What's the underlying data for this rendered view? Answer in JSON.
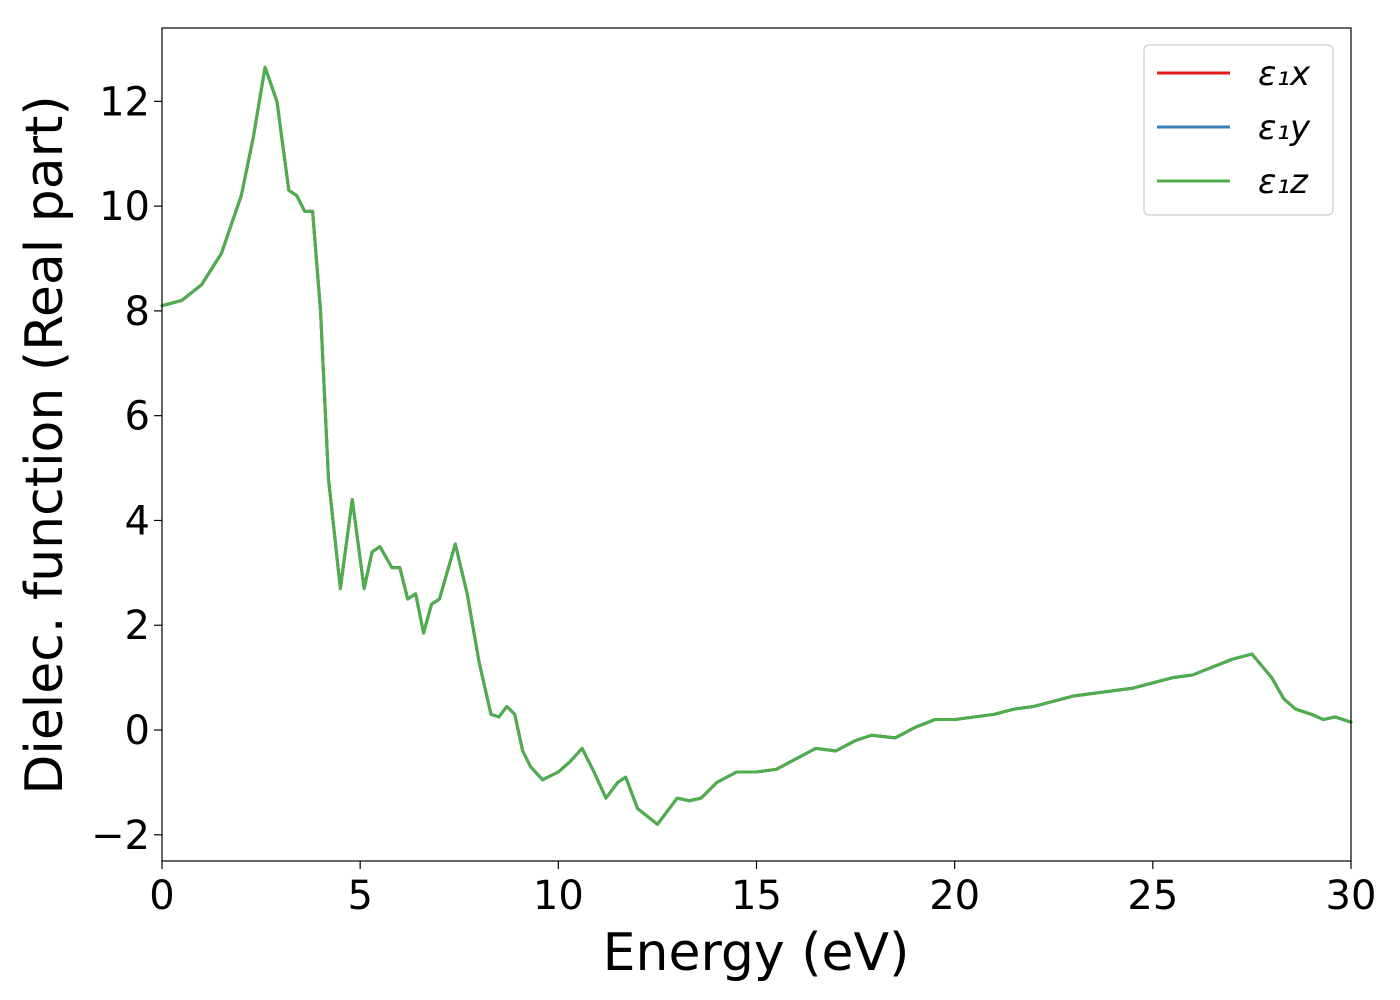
{
  "chart_data": {
    "type": "line",
    "xlabel": "Energy (eV)",
    "ylabel": "Dielec. function (Real part)",
    "xlim": [
      0,
      30
    ],
    "ylim": [
      -2.5,
      13.4
    ],
    "xticks": [
      0,
      5,
      10,
      15,
      20,
      25,
      30
    ],
    "xtick_labels": [
      "0",
      "5",
      "10",
      "15",
      "20",
      "25",
      "30"
    ],
    "yticks": [
      -2,
      0,
      2,
      4,
      6,
      8,
      10,
      12
    ],
    "ytick_labels": [
      "−2",
      "0",
      "2",
      "4",
      "6",
      "8",
      "10",
      "12"
    ],
    "grid": false,
    "legend_position": "top-right",
    "x": [
      0,
      0.5,
      1.0,
      1.5,
      2.0,
      2.3,
      2.6,
      2.9,
      3.2,
      3.4,
      3.6,
      3.8,
      4.0,
      4.2,
      4.5,
      4.8,
      5.1,
      5.3,
      5.5,
      5.8,
      6.0,
      6.2,
      6.4,
      6.6,
      6.8,
      7.0,
      7.4,
      7.7,
      8.0,
      8.3,
      8.5,
      8.7,
      8.9,
      9.1,
      9.3,
      9.6,
      10.0,
      10.3,
      10.6,
      10.9,
      11.2,
      11.5,
      11.7,
      12.0,
      12.5,
      13.0,
      13.3,
      13.6,
      14.0,
      14.5,
      15.0,
      15.5,
      16.0,
      16.5,
      17.0,
      17.5,
      17.9,
      18.5,
      19.0,
      19.5,
      20.0,
      20.5,
      21.0,
      21.5,
      22.0,
      22.5,
      23.0,
      23.5,
      24.0,
      24.5,
      25.0,
      25.5,
      26.0,
      26.5,
      27.0,
      27.5,
      28.0,
      28.3,
      28.6,
      29.0,
      29.3,
      29.6,
      30.0
    ],
    "series": [
      {
        "name": "ε₁x",
        "color": "#e41a1c",
        "values": [
          8.1,
          8.2,
          8.5,
          9.1,
          10.2,
          11.3,
          12.65,
          12.0,
          10.3,
          10.2,
          9.9,
          9.9,
          8.0,
          4.8,
          2.7,
          4.4,
          2.7,
          3.4,
          3.5,
          3.1,
          3.1,
          2.5,
          2.6,
          1.85,
          2.4,
          2.5,
          3.55,
          2.6,
          1.3,
          0.3,
          0.25,
          0.45,
          0.3,
          -0.4,
          -0.7,
          -0.95,
          -0.8,
          -0.6,
          -0.35,
          -0.8,
          -1.3,
          -1.0,
          -0.9,
          -1.5,
          -1.8,
          -1.3,
          -1.35,
          -1.3,
          -1.0,
          -0.8,
          -0.8,
          -0.75,
          -0.55,
          -0.35,
          -0.4,
          -0.2,
          -0.1,
          -0.15,
          0.05,
          0.2,
          0.2,
          0.25,
          0.3,
          0.4,
          0.45,
          0.55,
          0.65,
          0.7,
          0.75,
          0.8,
          0.9,
          1.0,
          1.05,
          1.2,
          1.35,
          1.45,
          1.0,
          0.6,
          0.4,
          0.3,
          0.2,
          0.25,
          0.15
        ]
      },
      {
        "name": "ε₁y",
        "color": "#377eb8",
        "values": [
          8.1,
          8.2,
          8.5,
          9.1,
          10.2,
          11.3,
          12.65,
          12.0,
          10.3,
          10.2,
          9.9,
          9.9,
          8.0,
          4.8,
          2.7,
          4.4,
          2.7,
          3.4,
          3.5,
          3.1,
          3.1,
          2.5,
          2.6,
          1.85,
          2.4,
          2.5,
          3.55,
          2.6,
          1.3,
          0.3,
          0.25,
          0.45,
          0.3,
          -0.4,
          -0.7,
          -0.95,
          -0.8,
          -0.6,
          -0.35,
          -0.8,
          -1.3,
          -1.0,
          -0.9,
          -1.5,
          -1.8,
          -1.3,
          -1.35,
          -1.3,
          -1.0,
          -0.8,
          -0.8,
          -0.75,
          -0.55,
          -0.35,
          -0.4,
          -0.2,
          -0.1,
          -0.15,
          0.05,
          0.2,
          0.2,
          0.25,
          0.3,
          0.4,
          0.45,
          0.55,
          0.65,
          0.7,
          0.75,
          0.8,
          0.9,
          1.0,
          1.05,
          1.2,
          1.35,
          1.45,
          1.0,
          0.6,
          0.4,
          0.3,
          0.2,
          0.25,
          0.15
        ]
      },
      {
        "name": "ε₁z",
        "color": "#4daf4a",
        "values": [
          8.1,
          8.2,
          8.5,
          9.1,
          10.2,
          11.3,
          12.65,
          12.0,
          10.3,
          10.2,
          9.9,
          9.9,
          8.0,
          4.8,
          2.7,
          4.4,
          2.7,
          3.4,
          3.5,
          3.1,
          3.1,
          2.5,
          2.6,
          1.85,
          2.4,
          2.5,
          3.55,
          2.6,
          1.3,
          0.3,
          0.25,
          0.45,
          0.3,
          -0.4,
          -0.7,
          -0.95,
          -0.8,
          -0.6,
          -0.35,
          -0.8,
          -1.3,
          -1.0,
          -0.9,
          -1.5,
          -1.8,
          -1.3,
          -1.35,
          -1.3,
          -1.0,
          -0.8,
          -0.8,
          -0.75,
          -0.55,
          -0.35,
          -0.4,
          -0.2,
          -0.1,
          -0.15,
          0.05,
          0.2,
          0.2,
          0.25,
          0.3,
          0.4,
          0.45,
          0.55,
          0.65,
          0.7,
          0.75,
          0.8,
          0.9,
          1.0,
          1.05,
          1.2,
          1.35,
          1.45,
          1.0,
          0.6,
          0.4,
          0.3,
          0.2,
          0.25,
          0.15
        ]
      }
    ],
    "legend": [
      {
        "label": "ε₁x",
        "color": "#e41a1c"
      },
      {
        "label": "ε₁y",
        "color": "#377eb8"
      },
      {
        "label": "ε₁z",
        "color": "#4daf4a"
      }
    ]
  }
}
